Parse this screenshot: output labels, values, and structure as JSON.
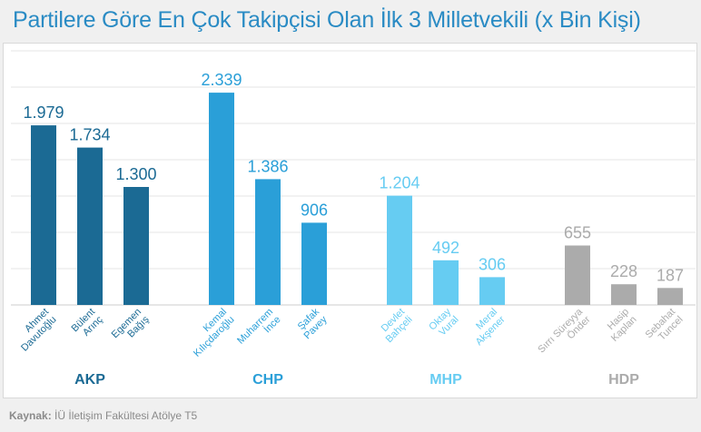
{
  "title": "Partilere Göre En Çok Takipçisi Olan İlk 3 Milletvekili (x Bin Kişi)",
  "source_label": "Kaynak:",
  "source_text": "İÜ İletişim Fakültesi Atölye T5",
  "chart_data": {
    "type": "bar",
    "title": "Partilere Göre En Çok Takipçisi Olan İlk 3 Milletvekili (x Bin Kişi)",
    "xlabel": "",
    "ylabel": "",
    "ylim": [
      0,
      2800
    ],
    "grid": true,
    "groups": [
      {
        "party": "AKP",
        "color": "#1b6a94",
        "bars": [
          {
            "name": [
              "Ahmet",
              "Davutoğlu"
            ],
            "value": 1979,
            "label": "1.979"
          },
          {
            "name": [
              "Bülent",
              "Arınç"
            ],
            "value": 1734,
            "label": "1.734"
          },
          {
            "name": [
              "Egemen",
              "Bağış"
            ],
            "value": 1300,
            "label": "1.300"
          }
        ]
      },
      {
        "party": "CHP",
        "color": "#2a9fd8",
        "bars": [
          {
            "name": [
              "Kemal",
              "Kılıçdaroğlu"
            ],
            "value": 2339,
            "label": "2.339"
          },
          {
            "name": [
              "Muharrem",
              "İnce"
            ],
            "value": 1386,
            "label": "1.386"
          },
          {
            "name": [
              "Şafak",
              "Pavey"
            ],
            "value": 906,
            "label": "906"
          }
        ]
      },
      {
        "party": "MHP",
        "color": "#66ccf2",
        "bars": [
          {
            "name": [
              "Devlet",
              "Bahçeli"
            ],
            "value": 1204,
            "label": "1.204"
          },
          {
            "name": [
              "Oktay",
              "Vural"
            ],
            "value": 492,
            "label": "492"
          },
          {
            "name": [
              "Meral",
              "Akşener"
            ],
            "value": 306,
            "label": "306"
          }
        ]
      },
      {
        "party": "HDP",
        "color": "#ababab",
        "bars": [
          {
            "name": [
              "Sırrı Süreyya",
              "Önder"
            ],
            "value": 655,
            "label": "655"
          },
          {
            "name": [
              "Hasip",
              "Kaplan"
            ],
            "value": 228,
            "label": "228"
          },
          {
            "name": [
              "Sebahat",
              "Tuncel"
            ],
            "value": 187,
            "label": "187"
          }
        ]
      }
    ]
  }
}
